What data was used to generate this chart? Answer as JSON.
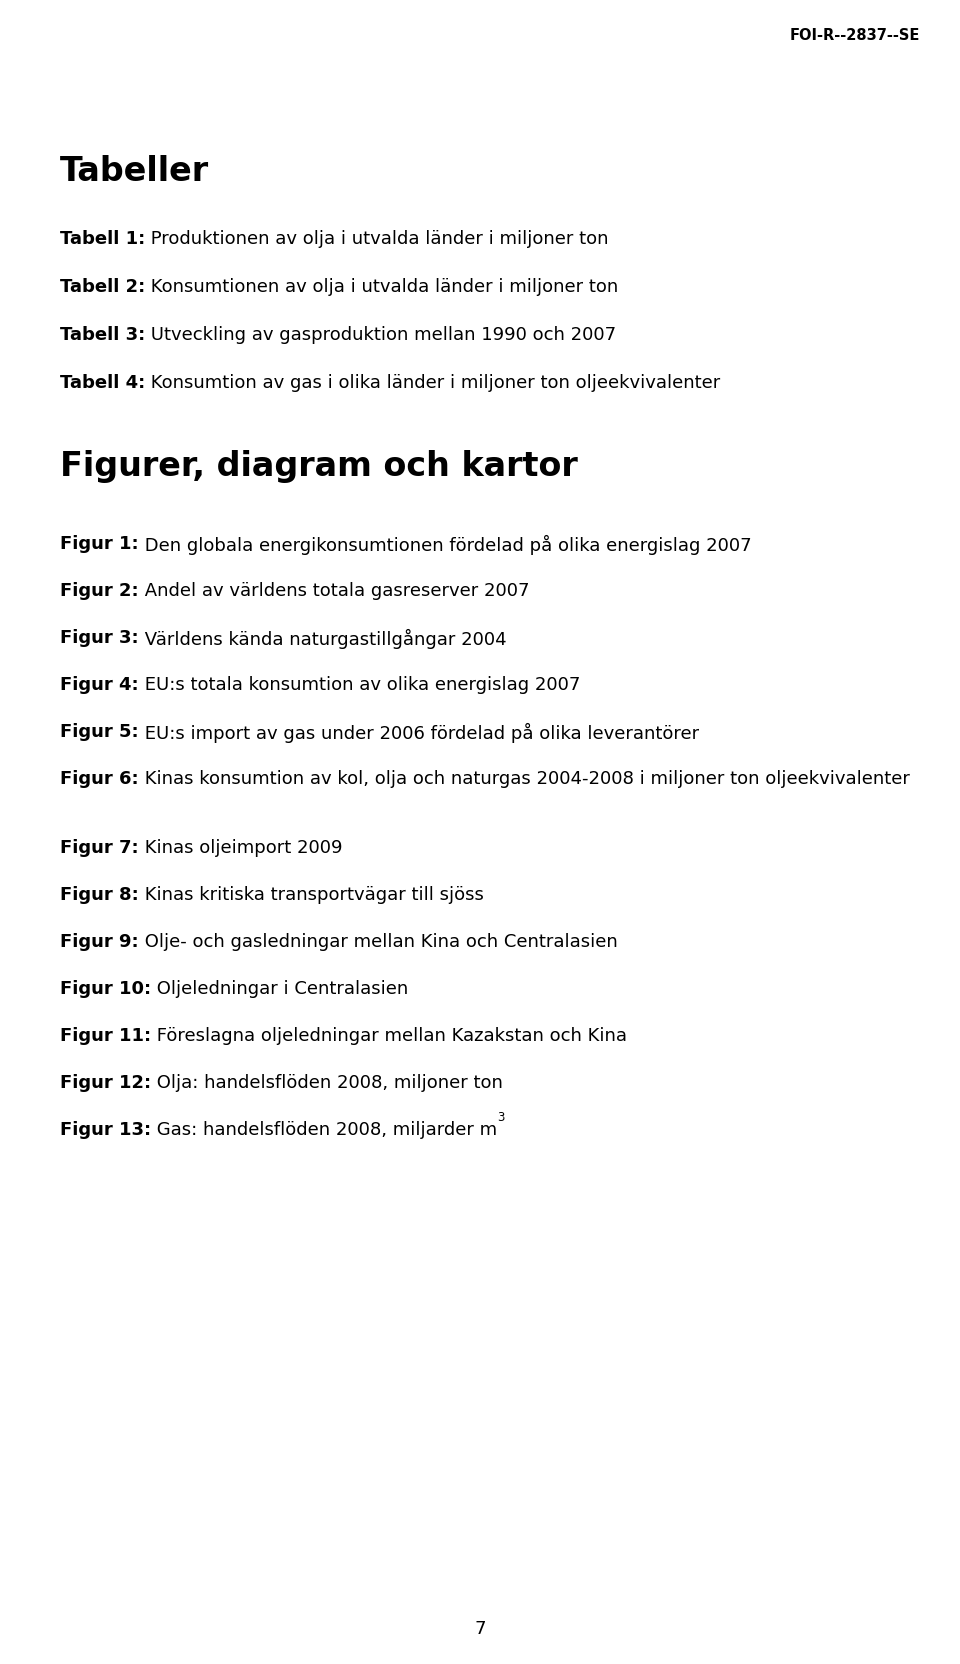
{
  "header": "FOI-R--2837--SE",
  "section1_title": "Tabeller",
  "tables": [
    {
      "bold": "Tabell 1:",
      "rest": " Produktionen av olja i utvalda länder i miljoner ton"
    },
    {
      "bold": "Tabell 2:",
      "rest": " Konsumtionen av olja i utvalda länder i miljoner ton"
    },
    {
      "bold": "Tabell 3:",
      "rest": " Utveckling av gasproduktion mellan 1990 och 2007"
    },
    {
      "bold": "Tabell 4:",
      "rest": " Konsumtion av gas i olika länder i miljoner ton oljeekvivalenter"
    }
  ],
  "section2_title": "Figurer, diagram och kartor",
  "figures": [
    {
      "bold": "Figur 1:",
      "rest": " Den globala energikonsumtionen fördelad på olika energislag 2007"
    },
    {
      "bold": "Figur 2:",
      "rest": " Andel av världens totala gasreserver 2007"
    },
    {
      "bold": "Figur 3:",
      "rest": " Världens kända naturgastillgångar 2004"
    },
    {
      "bold": "Figur 4:",
      "rest": " EU:s totala konsumtion av olika energislag 2007"
    },
    {
      "bold": "Figur 5:",
      "rest": " EU:s import av gas under 2006 fördelad på olika leverantörer"
    },
    {
      "bold": "Figur 6:",
      "rest": " Kinas konsumtion av kol, olja och naturgas 2004-2008 i miljoner ton oljeekvivalenter"
    },
    {
      "bold": "Figur 7:",
      "rest": " Kinas oljeimport 2009"
    },
    {
      "bold": "Figur 8:",
      "rest": " Kinas kritiska transportvägar till sjöss"
    },
    {
      "bold": "Figur 9:",
      "rest": " Olje- och gasledningar mellan Kina och Centralasien"
    },
    {
      "bold": "Figur 10:",
      "rest": " Oljeledningar i Centralasien"
    },
    {
      "bold": "Figur 11:",
      "rest": " Föreslagna oljeledningar mellan Kazakstan och Kina"
    },
    {
      "bold": "Figur 12:",
      "rest": " Olja: handelsflöden 2008, miljoner ton"
    },
    {
      "bold": "Figur 13:",
      "rest": " Gas: handelsflöden 2008, miljarder m",
      "superscript": "3"
    }
  ],
  "page_number": "7",
  "bg_color": "#ffffff",
  "text_color": "#000000",
  "header_fontsize": 10.5,
  "section_fontsize": 24,
  "entry_fontsize": 13,
  "page_fontsize": 13
}
